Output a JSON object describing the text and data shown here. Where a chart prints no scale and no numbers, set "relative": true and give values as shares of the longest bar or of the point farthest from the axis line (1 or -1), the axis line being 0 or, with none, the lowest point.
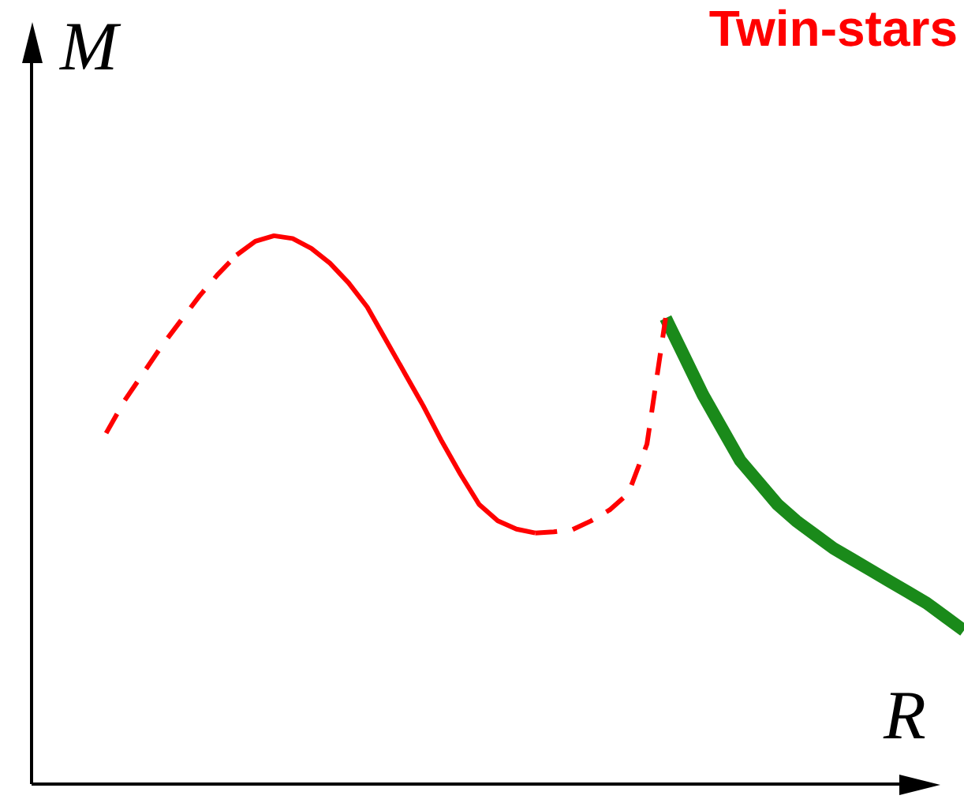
{
  "chart_data": {
    "type": "line",
    "title": "Twin-stars",
    "xlabel": "R",
    "ylabel": "M",
    "relative": true,
    "categories": [
      null,
      null,
      null,
      null,
      null,
      null,
      null,
      null,
      null,
      null,
      null,
      null,
      null,
      null,
      null,
      null,
      null,
      null,
      null,
      null,
      null,
      null,
      null,
      null,
      null,
      null,
      null,
      null,
      null,
      null,
      null,
      null,
      null,
      null,
      null,
      null,
      null,
      null,
      null,
      null,
      null,
      null,
      null,
      null,
      null,
      null,
      null,
      null,
      null,
      null,
      null
    ],
    "series": [
      {
        "color": "#ff0000",
        "line_style": "dashed",
        "values": [
          null,
          null,
          null,
          null,
          0.64,
          0.7,
          0.75,
          0.8,
          0.845,
          0.89,
          0.93,
          0.965,
          null,
          null,
          null,
          null,
          null,
          null,
          null,
          null,
          null,
          null,
          null,
          null,
          null,
          null,
          null,
          null,
          null,
          null,
          null,
          null,
          null,
          null,
          null,
          null,
          null,
          null,
          null,
          null,
          null,
          null,
          null,
          null,
          null,
          null,
          null,
          null,
          null,
          null,
          null
        ]
      },
      {
        "color": "#ff0000",
        "line_style": "solid",
        "values": [
          null,
          null,
          null,
          null,
          null,
          null,
          null,
          null,
          null,
          null,
          null,
          0.965,
          0.99,
          1.0,
          0.995,
          0.977,
          0.95,
          0.914,
          0.87,
          0.81,
          0.75,
          0.69,
          0.625,
          0.565,
          0.51,
          0.48,
          0.465,
          0.458,
          null,
          null,
          null,
          null,
          null,
          null,
          null,
          null,
          null,
          null,
          null,
          null,
          null,
          null,
          null,
          null,
          null,
          null,
          null,
          null,
          null,
          null,
          null
        ]
      },
      {
        "color": "#ff0000",
        "line_style": "dashed",
        "values": [
          null,
          null,
          null,
          null,
          null,
          null,
          null,
          null,
          null,
          null,
          null,
          null,
          null,
          null,
          null,
          null,
          null,
          null,
          null,
          null,
          null,
          null,
          null,
          null,
          null,
          null,
          null,
          0.458,
          0.46,
          0.464,
          0.48,
          0.5,
          0.53,
          0.62,
          0.85,
          null,
          null,
          null,
          null,
          null,
          null,
          null,
          null,
          null,
          null,
          null,
          null,
          null,
          null,
          null,
          null
        ]
      },
      {
        "color": "#1a8a1a",
        "line_style": "solid",
        "values": [
          null,
          null,
          null,
          null,
          null,
          null,
          null,
          null,
          null,
          null,
          null,
          null,
          null,
          null,
          null,
          null,
          null,
          null,
          null,
          null,
          null,
          null,
          null,
          null,
          null,
          null,
          null,
          null,
          null,
          null,
          null,
          null,
          null,
          null,
          0.85,
          0.78,
          0.71,
          0.65,
          0.59,
          0.55,
          0.51,
          0.48,
          0.455,
          0.43,
          0.41,
          0.39,
          0.37,
          0.35,
          0.33,
          0.305,
          0.28
        ]
      }
    ]
  }
}
